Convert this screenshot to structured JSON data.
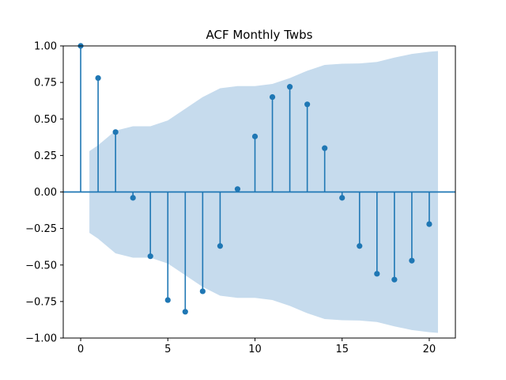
{
  "chart_data": {
    "type": "stem",
    "title": "ACF Monthly Twbs",
    "xlabel": "",
    "ylabel": "",
    "xlim": [
      -1,
      21.5
    ],
    "ylim": [
      -1.0,
      1.0
    ],
    "x_ticks": [
      0,
      5,
      10,
      15,
      20
    ],
    "x_tick_labels": [
      "0",
      "5",
      "10",
      "15",
      "20"
    ],
    "y_ticks": [
      -1.0,
      -0.75,
      -0.5,
      -0.25,
      0.0,
      0.25,
      0.5,
      0.75,
      1.0
    ],
    "y_tick_labels": [
      "−1.00",
      "−0.75",
      "−0.50",
      "−0.25",
      "0.00",
      "0.25",
      "0.50",
      "0.75",
      "1.00"
    ],
    "grid": false,
    "colors": {
      "stem": "#1f77b4",
      "band": "#c6dbed"
    },
    "series": [
      {
        "x": [
          0,
          1,
          2,
          3,
          4,
          5,
          6,
          7,
          8,
          9,
          10,
          11,
          12,
          13,
          14,
          15,
          16,
          17,
          18,
          19,
          20
        ],
        "values": [
          1.0,
          0.78,
          0.41,
          -0.04,
          -0.44,
          -0.74,
          -0.82,
          -0.68,
          -0.37,
          0.02,
          0.38,
          0.65,
          0.72,
          0.6,
          0.3,
          -0.04,
          -0.37,
          -0.56,
          -0.6,
          -0.47,
          -0.22
        ]
      }
    ],
    "confidence_band": {
      "x": [
        0.5,
        1,
        2,
        3,
        4,
        5,
        6,
        7,
        8,
        9,
        10,
        11,
        12,
        13,
        14,
        15,
        16,
        17,
        18,
        19,
        20,
        20.5
      ],
      "upper": [
        0.28,
        0.32,
        0.42,
        0.45,
        0.45,
        0.49,
        0.57,
        0.65,
        0.71,
        0.725,
        0.725,
        0.74,
        0.78,
        0.83,
        0.87,
        0.878,
        0.88,
        0.89,
        0.92,
        0.945,
        0.96,
        0.965
      ],
      "lower": [
        -0.28,
        -0.32,
        -0.42,
        -0.45,
        -0.45,
        -0.49,
        -0.57,
        -0.65,
        -0.71,
        -0.725,
        -0.725,
        -0.74,
        -0.78,
        -0.83,
        -0.87,
        -0.878,
        -0.88,
        -0.89,
        -0.92,
        -0.945,
        -0.96,
        -0.965
      ]
    }
  }
}
